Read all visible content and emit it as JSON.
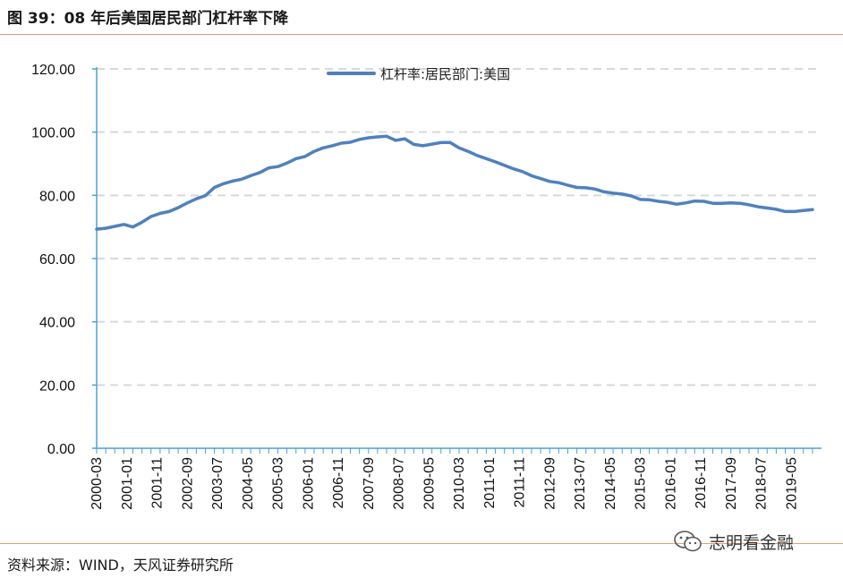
{
  "figure": {
    "title": "图 39：08 年后美国居民部门杠杆率下降",
    "source": "资料来源：WIND，天风证券研究所",
    "watermark": "志明看金融",
    "watermark_icon": "wechat-icon"
  },
  "colors": {
    "series": "#4f81bd",
    "axis": "#4f9fd5",
    "grid": "#d9d9d9",
    "rule": "#e8a070"
  },
  "chart_data": {
    "type": "line",
    "title": "",
    "xlabel": "",
    "ylabel": "",
    "ylim": [
      0,
      120
    ],
    "yticks": [
      0,
      20,
      40,
      60,
      80,
      100,
      120
    ],
    "ytick_labels": [
      "0.00",
      "20.00",
      "40.00",
      "60.00",
      "80.00",
      "100.00",
      "120.00"
    ],
    "xlim": [
      "2000-03",
      "2020-03"
    ],
    "xtick_labels": [
      "2000-03",
      "2001-01",
      "2001-11",
      "2002-09",
      "2003-07",
      "2004-05",
      "2005-03",
      "2006-01",
      "2006-11",
      "2007-09",
      "2008-07",
      "2009-05",
      "2010-03",
      "2011-01",
      "2011-11",
      "2012-09",
      "2013-07",
      "2014-05",
      "2015-03",
      "2016-01",
      "2016-11",
      "2017-09",
      "2018-07",
      "2019-05"
    ],
    "grid": true,
    "legend": "top-center",
    "series": [
      {
        "name": "杠杆率:居民部门:美国",
        "x": [
          "2000-03",
          "2000-06",
          "2000-09",
          "2000-12",
          "2001-03",
          "2001-06",
          "2001-09",
          "2001-12",
          "2002-03",
          "2002-06",
          "2002-09",
          "2002-12",
          "2003-03",
          "2003-06",
          "2003-09",
          "2003-12",
          "2004-03",
          "2004-06",
          "2004-09",
          "2004-12",
          "2005-03",
          "2005-06",
          "2005-09",
          "2005-12",
          "2006-03",
          "2006-06",
          "2006-09",
          "2006-12",
          "2007-03",
          "2007-06",
          "2007-09",
          "2007-12",
          "2008-03",
          "2008-06",
          "2008-09",
          "2008-12",
          "2009-03",
          "2009-06",
          "2009-09",
          "2009-12",
          "2010-03",
          "2010-06",
          "2010-09",
          "2010-12",
          "2011-03",
          "2011-06",
          "2011-09",
          "2011-12",
          "2012-03",
          "2012-06",
          "2012-09",
          "2012-12",
          "2013-03",
          "2013-06",
          "2013-09",
          "2013-12",
          "2014-03",
          "2014-06",
          "2014-09",
          "2014-12",
          "2015-03",
          "2015-06",
          "2015-09",
          "2015-12",
          "2016-03",
          "2016-06",
          "2016-09",
          "2016-12",
          "2017-03",
          "2017-06",
          "2017-09",
          "2017-12",
          "2018-03",
          "2018-06",
          "2018-09",
          "2018-12",
          "2019-03",
          "2019-06",
          "2019-09",
          "2019-12"
        ],
        "values": [
          69.3,
          69.6,
          70.2,
          70.8,
          70.0,
          71.5,
          73.3,
          74.3,
          74.9,
          76.1,
          77.6,
          78.9,
          79.9,
          82.5,
          83.7,
          84.5,
          85.1,
          86.2,
          87.2,
          88.7,
          89.1,
          90.2,
          91.6,
          92.3,
          93.9,
          95.0,
          95.7,
          96.5,
          96.8,
          97.7,
          98.2,
          98.5,
          98.7,
          97.4,
          97.9,
          96.1,
          95.7,
          96.2,
          96.7,
          96.7,
          95.0,
          93.9,
          92.6,
          91.6,
          90.6,
          89.5,
          88.4,
          87.5,
          86.2,
          85.3,
          84.4,
          84.0,
          83.2,
          82.5,
          82.4,
          82.0,
          81.1,
          80.7,
          80.4,
          79.8,
          78.7,
          78.6,
          78.1,
          77.8,
          77.2,
          77.6,
          78.2,
          78.1,
          77.5,
          77.5,
          77.6,
          77.5,
          77.0,
          76.4,
          76.0,
          75.6,
          74.9,
          74.9,
          75.2,
          75.5
        ]
      }
    ]
  }
}
